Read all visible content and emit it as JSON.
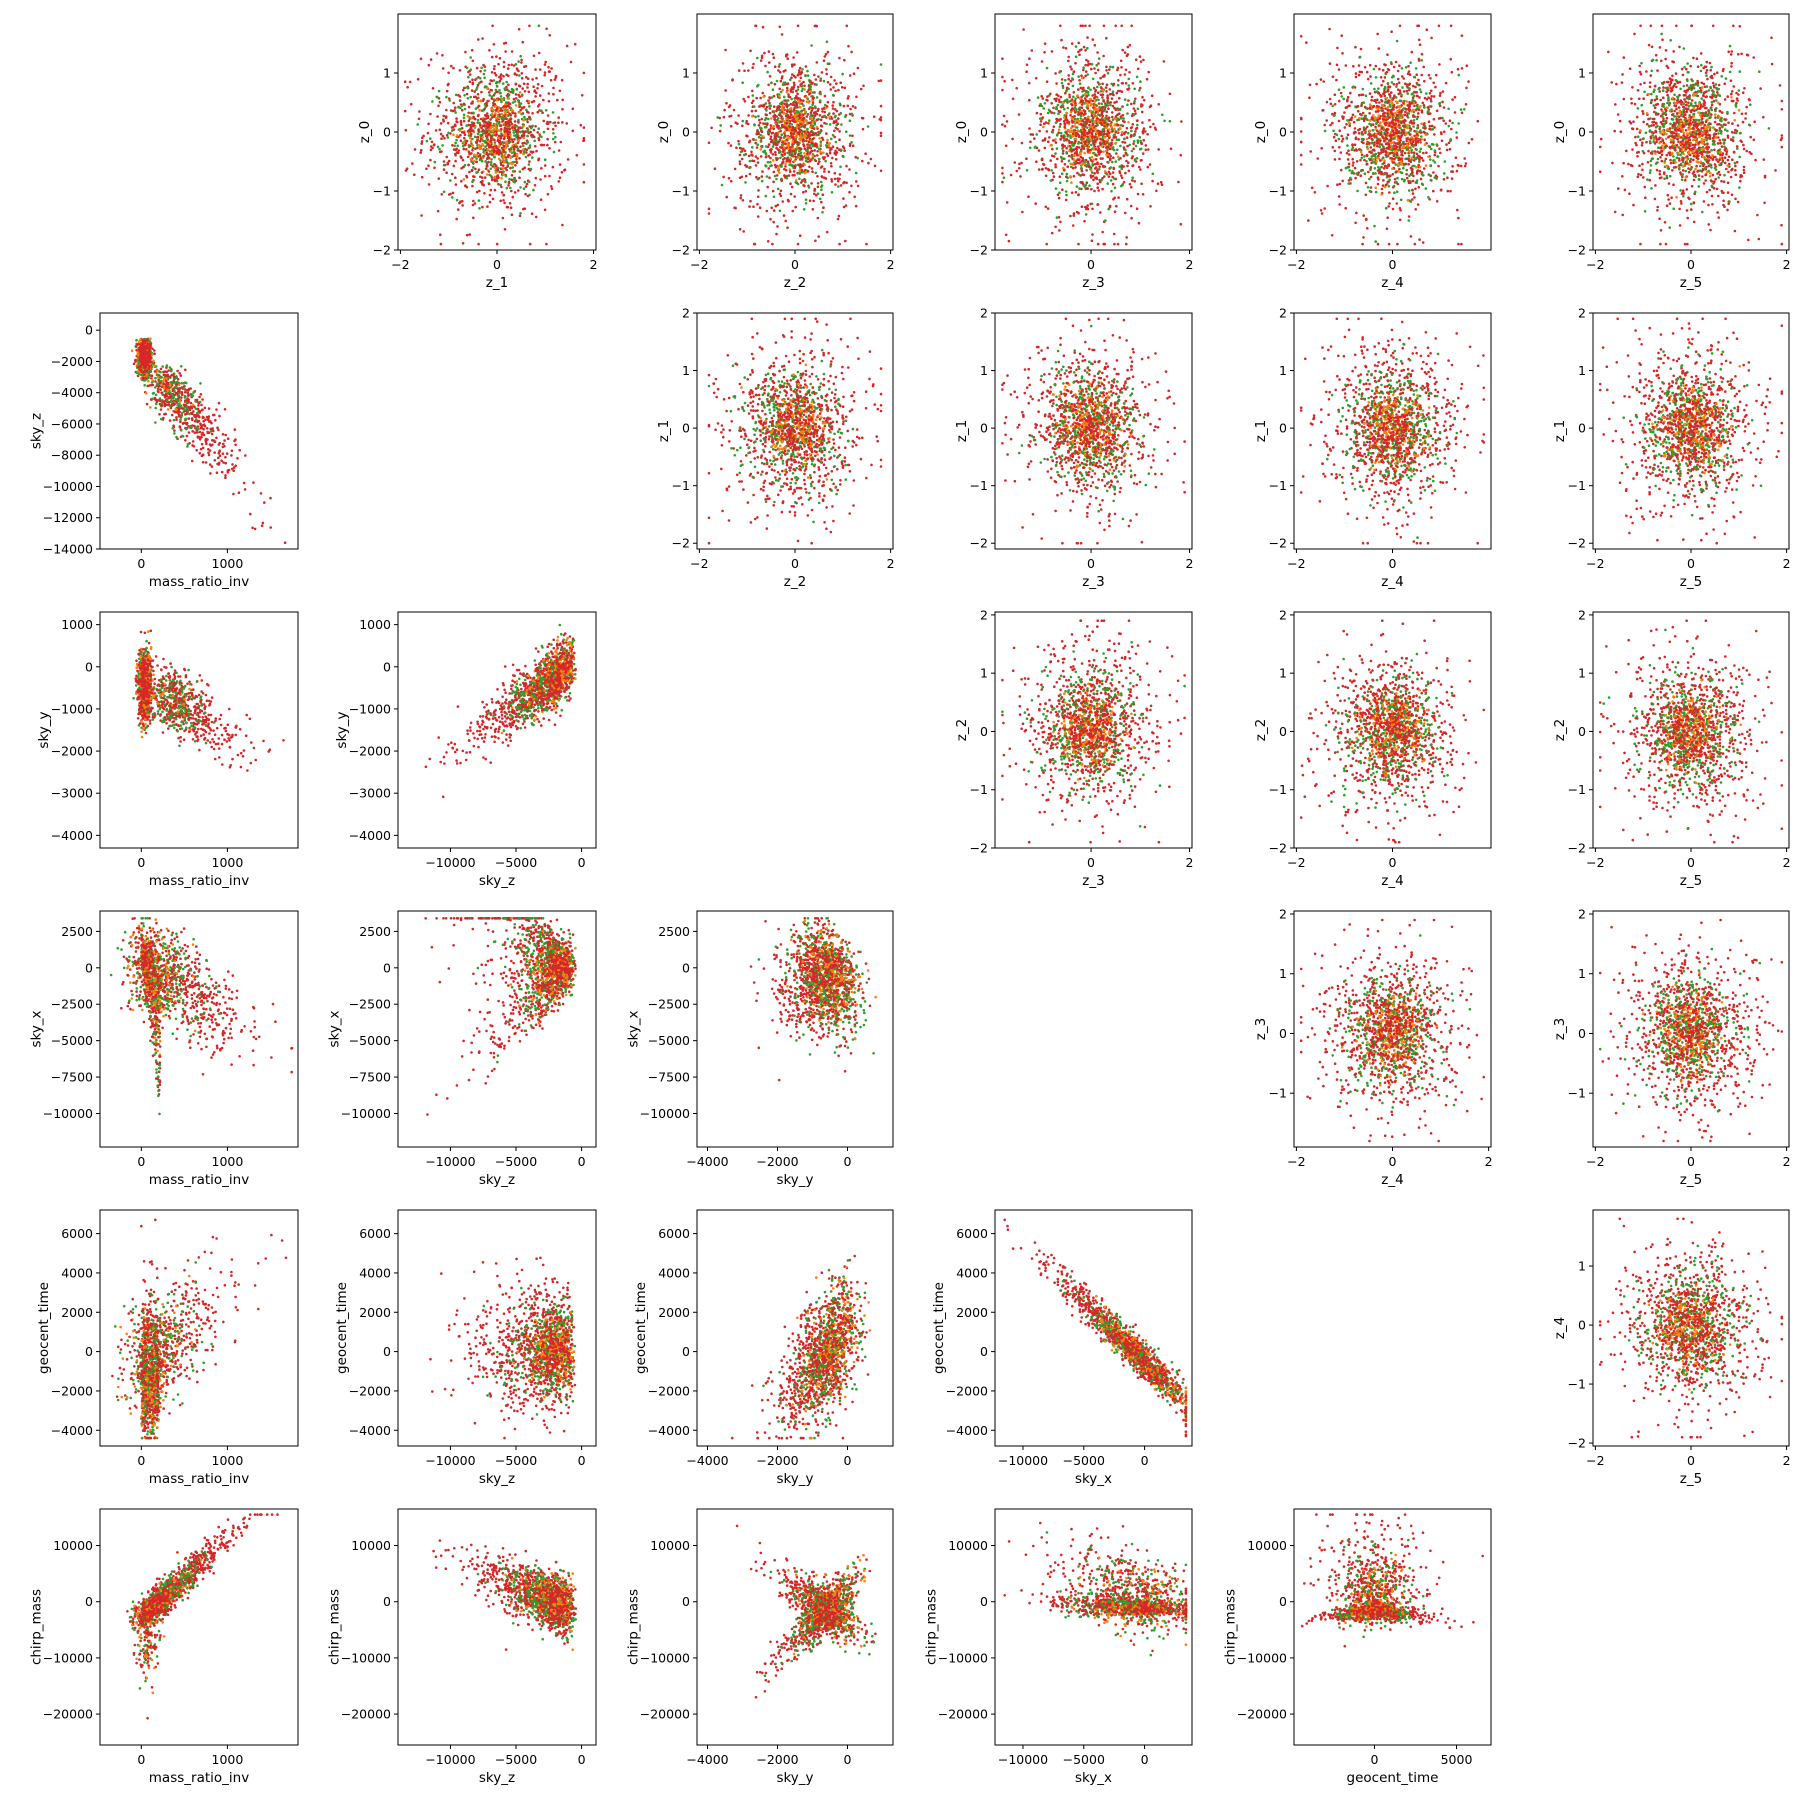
{
  "figure": {
    "type": "scatter-matrix",
    "colors": {
      "low": "#d62728",
      "mid": "#2ca02c",
      "high": "#ff7f0e",
      "axis": "#000000"
    }
  },
  "chart_data": [
    {
      "type": "scatter",
      "row": 0,
      "col": 1,
      "xlabel": "z_1",
      "ylabel": "z_0",
      "xlim": [
        -2.05,
        2.05
      ],
      "ylim": [
        -2,
        2
      ],
      "xticks": [
        -2,
        0,
        2
      ],
      "yticks": [
        -2,
        -1,
        0,
        1
      ],
      "dist": {
        "kind": "blob",
        "cx": 0,
        "cy": 0,
        "sx": 0.75,
        "sy": 0.75,
        "xmin": -1.9,
        "xmax": 1.8,
        "ymin": -1.9,
        "ymax": 1.8
      }
    },
    {
      "type": "scatter",
      "row": 0,
      "col": 2,
      "xlabel": "z_2",
      "ylabel": "z_0",
      "xlim": [
        -2.05,
        2.05
      ],
      "ylim": [
        -2,
        2
      ],
      "xticks": [
        -2,
        0,
        2
      ],
      "yticks": [
        -2,
        -1,
        0,
        1
      ],
      "dist": {
        "kind": "blob",
        "cx": 0,
        "cy": 0,
        "sx": 0.72,
        "sy": 0.75,
        "xmin": -1.8,
        "xmax": 1.8,
        "ymin": -1.9,
        "ymax": 1.8
      }
    },
    {
      "type": "scatter",
      "row": 0,
      "col": 3,
      "xlabel": "z_3",
      "ylabel": "z_0",
      "xlim": [
        -1.95,
        2.05
      ],
      "ylim": [
        -2,
        2
      ],
      "xticks": [
        0,
        2
      ],
      "yticks": [
        -2,
        -1,
        0,
        1
      ],
      "dist": {
        "kind": "blob",
        "cx": 0,
        "cy": 0,
        "sx": 0.7,
        "sy": 0.75,
        "xmin": -1.8,
        "xmax": 1.9,
        "ymin": -1.9,
        "ymax": 1.8
      }
    },
    {
      "type": "scatter",
      "row": 0,
      "col": 4,
      "xlabel": "z_4",
      "ylabel": "z_0",
      "xlim": [
        -2.05,
        2.05
      ],
      "ylim": [
        -2,
        2
      ],
      "xticks": [
        -2,
        0
      ],
      "yticks": [
        -2,
        -1,
        0,
        1
      ],
      "dist": {
        "kind": "blob",
        "cx": 0,
        "cy": 0,
        "sx": 0.72,
        "sy": 0.75,
        "xmin": -1.9,
        "xmax": 1.9,
        "ymin": -1.9,
        "ymax": 1.8
      }
    },
    {
      "type": "scatter",
      "row": 0,
      "col": 5,
      "xlabel": "z_5",
      "ylabel": "z_0",
      "xlim": [
        -2.05,
        2.05
      ],
      "ylim": [
        -2,
        2
      ],
      "xticks": [
        -2,
        0,
        2
      ],
      "yticks": [
        -2,
        -1,
        0,
        1
      ],
      "dist": {
        "kind": "blob",
        "cx": 0,
        "cy": 0,
        "sx": 0.72,
        "sy": 0.75,
        "xmin": -1.9,
        "xmax": 1.9,
        "ymin": -1.9,
        "ymax": 1.8
      }
    },
    {
      "type": "scatter",
      "row": 1,
      "col": 0,
      "xlabel": "mass_ratio_inv",
      "ylabel": "sky_z",
      "xlim": [
        -480,
        1820
      ],
      "ylim": [
        -14000,
        1100
      ],
      "xticks": [
        0,
        1000
      ],
      "yticks": [
        -14000,
        -12000,
        -10000,
        -8000,
        -6000,
        -4000,
        -2000,
        0
      ],
      "dist": {
        "kind": "mri_skyz"
      }
    },
    {
      "type": "scatter",
      "row": 1,
      "col": 2,
      "xlabel": "z_2",
      "ylabel": "z_1",
      "xlim": [
        -2.05,
        2.05
      ],
      "ylim": [
        -2.1,
        2
      ],
      "xticks": [
        -2,
        0,
        2
      ],
      "yticks": [
        -2,
        -1,
        0,
        1,
        2
      ],
      "dist": {
        "kind": "blob",
        "cx": 0,
        "cy": 0,
        "sx": 0.72,
        "sy": 0.75,
        "xmin": -1.8,
        "xmax": 1.8,
        "ymin": -2,
        "ymax": 1.9
      }
    },
    {
      "type": "scatter",
      "row": 1,
      "col": 3,
      "xlabel": "z_3",
      "ylabel": "z_1",
      "xlim": [
        -1.95,
        2.05
      ],
      "ylim": [
        -2.1,
        2
      ],
      "xticks": [
        0,
        2
      ],
      "yticks": [
        -2,
        -1,
        0,
        1,
        2
      ],
      "dist": {
        "kind": "blob",
        "cx": 0,
        "cy": 0,
        "sx": 0.7,
        "sy": 0.75,
        "xmin": -1.8,
        "xmax": 1.9,
        "ymin": -2,
        "ymax": 1.9
      }
    },
    {
      "type": "scatter",
      "row": 1,
      "col": 4,
      "xlabel": "z_4",
      "ylabel": "z_1",
      "xlim": [
        -2.05,
        2.05
      ],
      "ylim": [
        -2.1,
        2
      ],
      "xticks": [
        -2,
        0
      ],
      "yticks": [
        -2,
        -1,
        0,
        1,
        2
      ],
      "dist": {
        "kind": "blob",
        "cx": 0,
        "cy": 0,
        "sx": 0.72,
        "sy": 0.75,
        "xmin": -1.9,
        "xmax": 1.9,
        "ymin": -2,
        "ymax": 1.9
      }
    },
    {
      "type": "scatter",
      "row": 1,
      "col": 5,
      "xlabel": "z_5",
      "ylabel": "z_1",
      "xlim": [
        -2.05,
        2.05
      ],
      "ylim": [
        -2.1,
        2
      ],
      "xticks": [
        -2,
        0,
        2
      ],
      "yticks": [
        -2,
        -1,
        0,
        1,
        2
      ],
      "dist": {
        "kind": "blob",
        "cx": 0,
        "cy": 0,
        "sx": 0.72,
        "sy": 0.75,
        "xmin": -1.9,
        "xmax": 1.9,
        "ymin": -2,
        "ymax": 1.9
      }
    },
    {
      "type": "scatter",
      "row": 2,
      "col": 0,
      "xlabel": "mass_ratio_inv",
      "ylabel": "sky_y",
      "xlim": [
        -480,
        1820
      ],
      "ylim": [
        -4300,
        1300
      ],
      "xticks": [
        0,
        1000
      ],
      "yticks": [
        -4000,
        -3000,
        -2000,
        -1000,
        0,
        1000
      ],
      "dist": {
        "kind": "mri_skyy"
      }
    },
    {
      "type": "scatter",
      "row": 2,
      "col": 1,
      "xlabel": "sky_z",
      "ylabel": "sky_y",
      "xlim": [
        -14000,
        1100
      ],
      "ylim": [
        -4300,
        1300
      ],
      "xticks": [
        -10000,
        -5000,
        0
      ],
      "yticks": [
        -4000,
        -3000,
        -2000,
        -1000,
        0,
        1000
      ],
      "dist": {
        "kind": "skyz_skyy"
      }
    },
    {
      "type": "scatter",
      "row": 2,
      "col": 3,
      "xlabel": "z_3",
      "ylabel": "z_2",
      "xlim": [
        -1.95,
        2.05
      ],
      "ylim": [
        -2,
        2.05
      ],
      "xticks": [
        0,
        2
      ],
      "yticks": [
        -2,
        -1,
        0,
        1,
        2
      ],
      "dist": {
        "kind": "blob",
        "cx": 0,
        "cy": 0,
        "sx": 0.7,
        "sy": 0.72,
        "xmin": -1.8,
        "xmax": 1.9,
        "ymin": -1.9,
        "ymax": 1.9
      }
    },
    {
      "type": "scatter",
      "row": 2,
      "col": 4,
      "xlabel": "z_4",
      "ylabel": "z_2",
      "xlim": [
        -2.05,
        2.05
      ],
      "ylim": [
        -2,
        2.05
      ],
      "xticks": [
        -2,
        0
      ],
      "yticks": [
        -2,
        -1,
        0,
        1,
        2
      ],
      "dist": {
        "kind": "blob",
        "cx": 0,
        "cy": 0,
        "sx": 0.72,
        "sy": 0.72,
        "xmin": -1.9,
        "xmax": 1.9,
        "ymin": -1.9,
        "ymax": 1.9
      }
    },
    {
      "type": "scatter",
      "row": 2,
      "col": 5,
      "xlabel": "z_5",
      "ylabel": "z_2",
      "xlim": [
        -2.05,
        2.05
      ],
      "ylim": [
        -2,
        2.05
      ],
      "xticks": [
        -2,
        0,
        2
      ],
      "yticks": [
        -2,
        -1,
        0,
        1,
        2
      ],
      "dist": {
        "kind": "blob",
        "cx": 0,
        "cy": 0,
        "sx": 0.72,
        "sy": 0.72,
        "xmin": -1.9,
        "xmax": 1.9,
        "ymin": -1.9,
        "ymax": 1.9
      }
    },
    {
      "type": "scatter",
      "row": 3,
      "col": 0,
      "xlabel": "mass_ratio_inv",
      "ylabel": "sky_x",
      "xlim": [
        -480,
        1820
      ],
      "ylim": [
        -12300,
        3900
      ],
      "xticks": [
        0,
        1000
      ],
      "yticks": [
        -10000,
        -7500,
        -5000,
        -2500,
        0,
        2500
      ],
      "dist": {
        "kind": "mri_skyx"
      }
    },
    {
      "type": "scatter",
      "row": 3,
      "col": 1,
      "xlabel": "sky_z",
      "ylabel": "sky_x",
      "xlim": [
        -14000,
        1100
      ],
      "ylim": [
        -12300,
        3900
      ],
      "xticks": [
        -10000,
        -5000,
        0
      ],
      "yticks": [
        -10000,
        -7500,
        -5000,
        -2500,
        0,
        2500
      ],
      "dist": {
        "kind": "skyz_skyx"
      }
    },
    {
      "type": "scatter",
      "row": 3,
      "col": 2,
      "xlabel": "sky_y",
      "ylabel": "sky_x",
      "xlim": [
        -4300,
        1300
      ],
      "ylim": [
        -12300,
        3900
      ],
      "xticks": [
        -4000,
        -2000,
        0
      ],
      "yticks": [
        -10000,
        -7500,
        -5000,
        -2500,
        0,
        2500
      ],
      "dist": {
        "kind": "skyy_skyx"
      }
    },
    {
      "type": "scatter",
      "row": 3,
      "col": 4,
      "xlabel": "z_4",
      "ylabel": "z_3",
      "xlim": [
        -2.05,
        2.05
      ],
      "ylim": [
        -1.9,
        2.05
      ],
      "xticks": [
        -2,
        0,
        2
      ],
      "yticks": [
        -1,
        0,
        1,
        2
      ],
      "dist": {
        "kind": "blob",
        "cx": 0,
        "cy": 0,
        "sx": 0.72,
        "sy": 0.7,
        "xmin": -1.9,
        "xmax": 1.9,
        "ymin": -1.8,
        "ymax": 1.9
      }
    },
    {
      "type": "scatter",
      "row": 3,
      "col": 5,
      "xlabel": "z_5",
      "ylabel": "z_3",
      "xlim": [
        -2.05,
        2.05
      ],
      "ylim": [
        -1.9,
        2.05
      ],
      "xticks": [
        -2,
        0,
        2
      ],
      "yticks": [
        -1,
        0,
        1,
        2
      ],
      "dist": {
        "kind": "blob",
        "cx": 0,
        "cy": 0,
        "sx": 0.72,
        "sy": 0.7,
        "xmin": -1.9,
        "xmax": 1.9,
        "ymin": -1.8,
        "ymax": 1.9
      }
    },
    {
      "type": "scatter",
      "row": 4,
      "col": 0,
      "xlabel": "mass_ratio_inv",
      "ylabel": "geocent_time",
      "xlim": [
        -480,
        1820
      ],
      "ylim": [
        -4800,
        7200
      ],
      "xticks": [
        0,
        1000
      ],
      "yticks": [
        -4000,
        -2000,
        0,
        2000,
        4000,
        6000
      ],
      "dist": {
        "kind": "mri_gt"
      }
    },
    {
      "type": "scatter",
      "row": 4,
      "col": 1,
      "xlabel": "sky_z",
      "ylabel": "geocent_time",
      "xlim": [
        -14000,
        1100
      ],
      "ylim": [
        -4800,
        7200
      ],
      "xticks": [
        -10000,
        -5000,
        0
      ],
      "yticks": [
        -4000,
        -2000,
        0,
        2000,
        4000,
        6000
      ],
      "dist": {
        "kind": "skyz_gt"
      }
    },
    {
      "type": "scatter",
      "row": 4,
      "col": 2,
      "xlabel": "sky_y",
      "ylabel": "geocent_time",
      "xlim": [
        -4300,
        1300
      ],
      "ylim": [
        -4800,
        7200
      ],
      "xticks": [
        -4000,
        -2000,
        0
      ],
      "yticks": [
        -4000,
        -2000,
        0,
        2000,
        4000,
        6000
      ],
      "dist": {
        "kind": "skyy_gt"
      }
    },
    {
      "type": "scatter",
      "row": 4,
      "col": 3,
      "xlabel": "sky_x",
      "ylabel": "geocent_time",
      "xlim": [
        -12300,
        3900
      ],
      "ylim": [
        -4800,
        7200
      ],
      "xticks": [
        -10000,
        -5000,
        0
      ],
      "yticks": [
        -4000,
        -2000,
        0,
        2000,
        4000,
        6000
      ],
      "dist": {
        "kind": "skyx_gt"
      }
    },
    {
      "type": "scatter",
      "row": 4,
      "col": 5,
      "xlabel": "z_5",
      "ylabel": "z_4",
      "xlim": [
        -2.05,
        2.05
      ],
      "ylim": [
        -2.05,
        1.95
      ],
      "xticks": [
        -2,
        0,
        2
      ],
      "yticks": [
        -2,
        -1,
        0,
        1
      ],
      "dist": {
        "kind": "blob",
        "cx": 0,
        "cy": 0,
        "sx": 0.72,
        "sy": 0.72,
        "xmin": -1.9,
        "xmax": 1.9,
        "ymin": -1.9,
        "ymax": 1.8
      }
    },
    {
      "type": "scatter",
      "row": 5,
      "col": 0,
      "xlabel": "mass_ratio_inv",
      "ylabel": "chirp_mass",
      "xlim": [
        -480,
        1820
      ],
      "ylim": [
        -25500,
        16500
      ],
      "xticks": [
        0,
        1000
      ],
      "yticks": [
        -20000,
        -10000,
        0,
        10000
      ],
      "dist": {
        "kind": "mri_cm"
      }
    },
    {
      "type": "scatter",
      "row": 5,
      "col": 1,
      "xlabel": "sky_z",
      "ylabel": "chirp_mass",
      "xlim": [
        -14000,
        1100
      ],
      "ylim": [
        -25500,
        16500
      ],
      "xticks": [
        -10000,
        -5000,
        0
      ],
      "yticks": [
        -20000,
        -10000,
        0,
        10000
      ],
      "dist": {
        "kind": "skyz_cm"
      }
    },
    {
      "type": "scatter",
      "row": 5,
      "col": 2,
      "xlabel": "sky_y",
      "ylabel": "chirp_mass",
      "xlim": [
        -4300,
        1300
      ],
      "ylim": [
        -25500,
        16500
      ],
      "xticks": [
        -4000,
        -2000,
        0
      ],
      "yticks": [
        -20000,
        -10000,
        0,
        10000
      ],
      "dist": {
        "kind": "skyy_cm"
      }
    },
    {
      "type": "scatter",
      "row": 5,
      "col": 3,
      "xlabel": "sky_x",
      "ylabel": "chirp_mass",
      "xlim": [
        -12300,
        3900
      ],
      "ylim": [
        -25500,
        16500
      ],
      "xticks": [
        -10000,
        -5000,
        0
      ],
      "yticks": [
        -20000,
        -10000,
        0,
        10000
      ],
      "dist": {
        "kind": "skyx_cm"
      }
    },
    {
      "type": "scatter",
      "row": 5,
      "col": 4,
      "xlabel": "geocent_time",
      "ylabel": "chirp_mass",
      "xlim": [
        -4900,
        7100
      ],
      "ylim": [
        -25500,
        16500
      ],
      "xticks": [
        0,
        5000
      ],
      "yticks": [
        -20000,
        -10000,
        0,
        10000
      ],
      "dist": {
        "kind": "gt_cm"
      }
    }
  ]
}
